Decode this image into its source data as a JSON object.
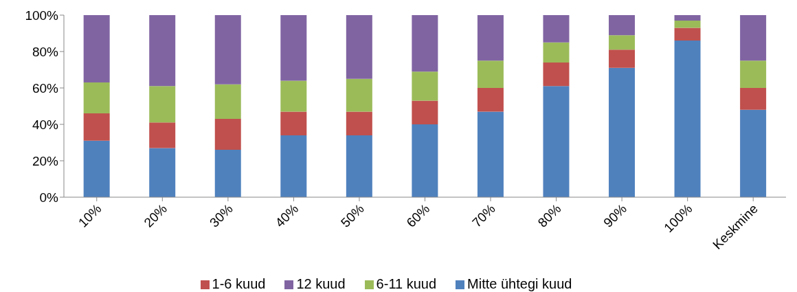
{
  "chart_data": {
    "type": "bar",
    "stacked": true,
    "categories": [
      "10%",
      "20%",
      "30%",
      "40%",
      "50%",
      "60%",
      "70%",
      "80%",
      "90%",
      "100%",
      "Keskmine"
    ],
    "series": [
      {
        "name": "Mitte ühtegi kuud",
        "color": "#4f81bd",
        "values": [
          31,
          27,
          26,
          34,
          34,
          40,
          47,
          61,
          71,
          86,
          48
        ]
      },
      {
        "name": "1-6 kuud",
        "color": "#c0504d",
        "values": [
          15,
          14,
          17,
          13,
          13,
          13,
          13,
          13,
          10,
          7,
          12
        ]
      },
      {
        "name": "6-11 kuud",
        "color": "#9bbb59",
        "values": [
          17,
          20,
          19,
          17,
          18,
          16,
          15,
          11,
          8,
          4,
          15
        ]
      },
      {
        "name": "12 kuud",
        "color": "#8064a2",
        "values": [
          37,
          39,
          38,
          36,
          35,
          31,
          25,
          15,
          11,
          3,
          25
        ]
      }
    ],
    "ylim": [
      0,
      100
    ],
    "yticks": [
      {
        "value": 0,
        "label": "0%"
      },
      {
        "value": 20,
        "label": "20%"
      },
      {
        "value": 40,
        "label": "40%"
      },
      {
        "value": 60,
        "label": "60%"
      },
      {
        "value": 80,
        "label": "80%"
      },
      {
        "value": 100,
        "label": "100%"
      }
    ],
    "grid": false,
    "legend": "bottom"
  }
}
